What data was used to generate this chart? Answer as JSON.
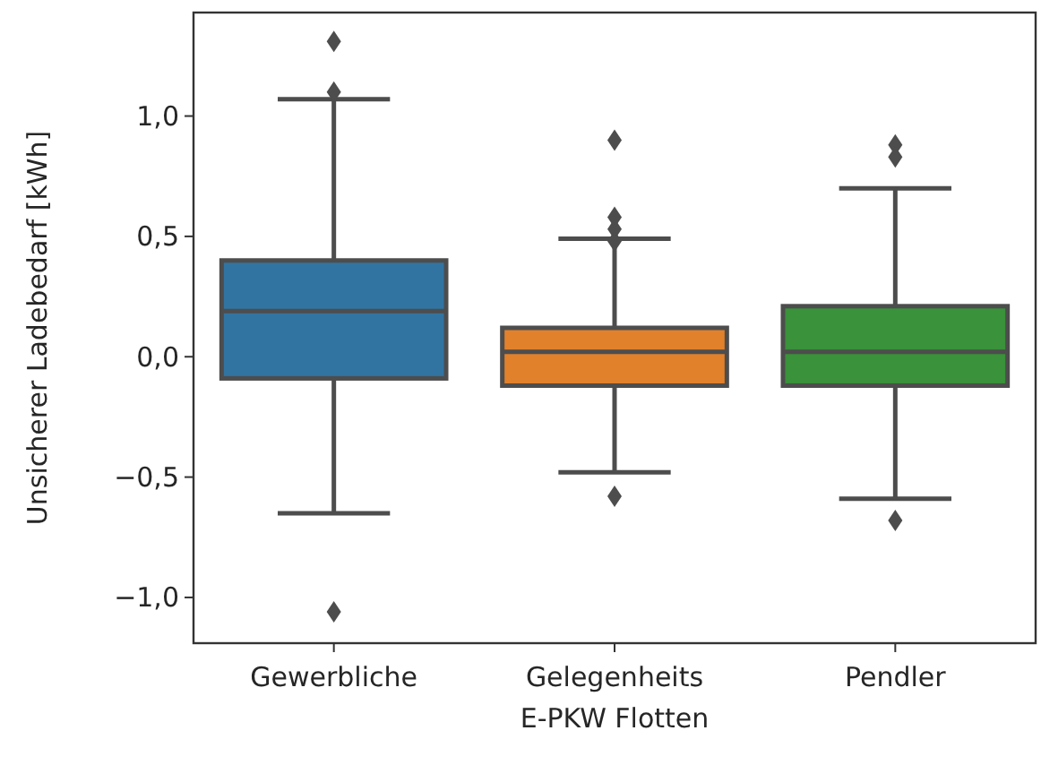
{
  "chart_data": {
    "type": "box",
    "xlabel": "E-PKW Flotten",
    "ylabel": "Unsicherer Ladebedarf [kWh]",
    "categories": [
      "Gewerbliche",
      "Gelegenheits",
      "Pendler"
    ],
    "colors": [
      "#3274a1",
      "#e1812c",
      "#3a923a"
    ],
    "boxes": [
      {
        "low": -0.65,
        "q1": -0.09,
        "median": 0.19,
        "q3": 0.4,
        "high": 1.07,
        "outliers": [
          1.31,
          1.1,
          -1.06
        ]
      },
      {
        "low": -0.48,
        "q1": -0.12,
        "median": 0.02,
        "q3": 0.12,
        "high": 0.49,
        "outliers": [
          0.9,
          0.58,
          0.53,
          0.48,
          -0.58
        ]
      },
      {
        "low": -0.59,
        "q1": -0.12,
        "median": 0.02,
        "q3": 0.21,
        "high": 0.7,
        "outliers": [
          0.88,
          0.83,
          -0.68
        ]
      }
    ],
    "ylim": [
      -1.19,
      1.43
    ],
    "yticks": [
      {
        "value": -1.0,
        "label": "−1,0"
      },
      {
        "value": -0.5,
        "label": "−0,5"
      },
      {
        "value": 0.0,
        "label": "0,0"
      },
      {
        "value": 0.5,
        "label": "0,5"
      },
      {
        "value": 1.0,
        "label": "1,0"
      }
    ],
    "marker": "diamond",
    "grid": false
  }
}
